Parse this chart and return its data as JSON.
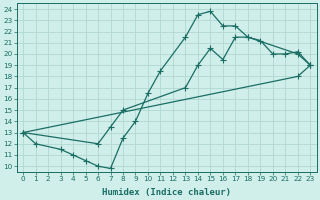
{
  "xlabel": "Humidex (Indice chaleur)",
  "xlim_min": -0.5,
  "xlim_max": 23.5,
  "ylim_min": 9.5,
  "ylim_max": 24.5,
  "xticks": [
    0,
    1,
    2,
    3,
    4,
    5,
    6,
    7,
    8,
    9,
    10,
    11,
    12,
    13,
    14,
    15,
    16,
    17,
    18,
    19,
    20,
    21,
    22,
    23
  ],
  "yticks": [
    10,
    11,
    12,
    13,
    14,
    15,
    16,
    17,
    18,
    19,
    20,
    21,
    22,
    23,
    24
  ],
  "bg_color": "#d0eeea",
  "grid_color": "#b0d8d0",
  "line_color": "#1a6e64",
  "line1_x": [
    0,
    1,
    3,
    4,
    5,
    6,
    7,
    8,
    9,
    10,
    11,
    13,
    14,
    15,
    16,
    17,
    18,
    19,
    20,
    21,
    22,
    23
  ],
  "line1_y": [
    13,
    12,
    11.5,
    11,
    10.5,
    10,
    9.8,
    12.5,
    14,
    16.5,
    18.5,
    21.5,
    23.5,
    23.8,
    22.5,
    22.5,
    21.5,
    21.2,
    20,
    20.0,
    20.2,
    19
  ],
  "line2_x": [
    0,
    6,
    7,
    8,
    13,
    14,
    15,
    16,
    17,
    18,
    22,
    23
  ],
  "line2_y": [
    13,
    12,
    13.5,
    15,
    17,
    19,
    20.5,
    19.5,
    21.5,
    21.5,
    20,
    19
  ],
  "line3_x": [
    0,
    22,
    23
  ],
  "line3_y": [
    13,
    18,
    19
  ]
}
